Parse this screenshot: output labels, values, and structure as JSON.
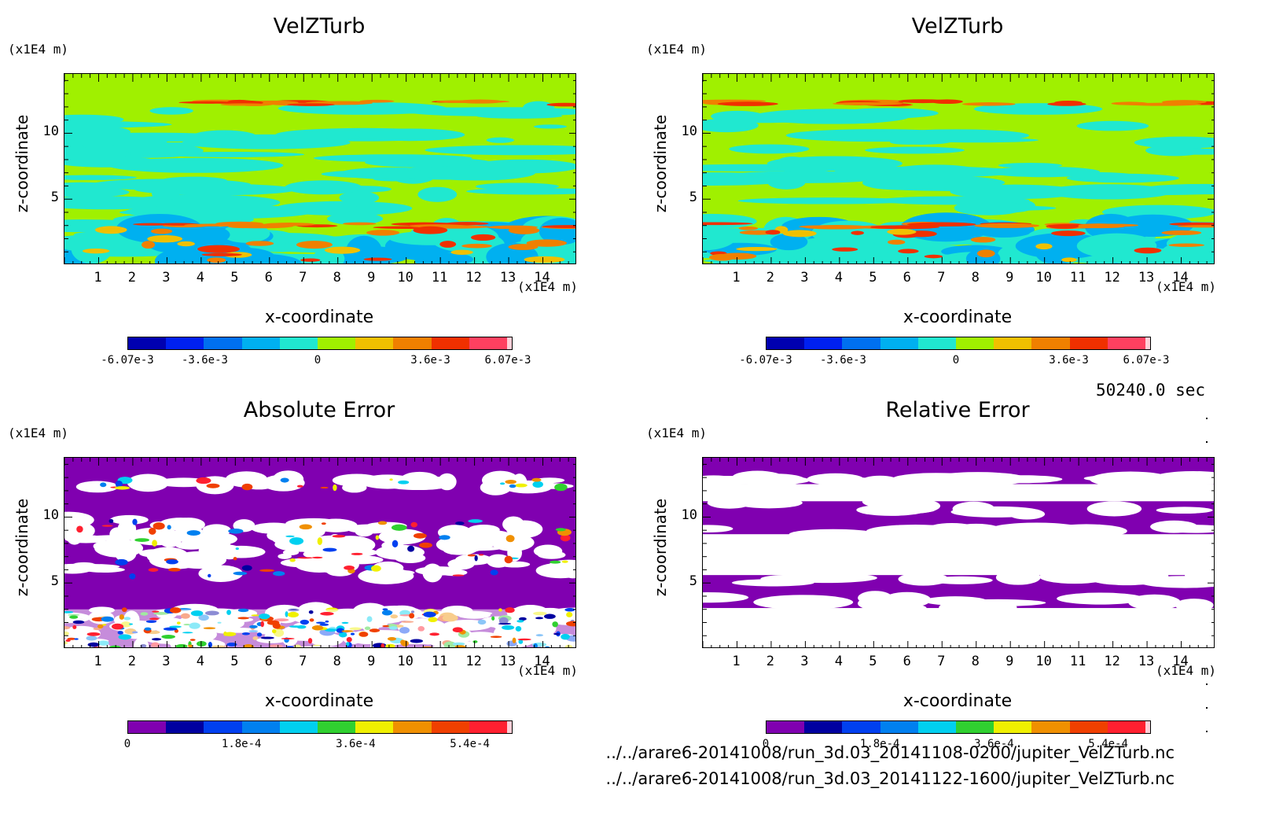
{
  "time_label": "50240.0 sec",
  "files": [
    "../../arare6-20141008/run_3d.03_20141108-0200/jupiter_VelZTurb.nc",
    "../../arare6-20141008/run_3d.03_20141122-1600/jupiter_VelZTurb.nc"
  ],
  "palettes": {
    "velocity": [
      "#0000b0",
      "#0020f0",
      "#0070f0",
      "#00b0f0",
      "#20e8d0",
      "#a0f000",
      "#f0c000",
      "#f08000",
      "#f03000",
      "#ff4060"
    ],
    "error": [
      "#8000b0",
      "#0000a0",
      "#0040f0",
      "#0080f0",
      "#00d0f0",
      "#30d030",
      "#f0f000",
      "#f09000",
      "#f04000",
      "#ff2030"
    ]
  },
  "chart_data": [
    {
      "type": "heatmap",
      "title": "VelZTurb",
      "xlabel": "x-coordinate",
      "ylabel": "z-coordinate",
      "x_unit": "(x1E4 m)",
      "y_unit": "(x1E4 m)",
      "xlim": [
        0,
        15
      ],
      "ylim": [
        0,
        14.5
      ],
      "xticks": [
        "1",
        "2",
        "3",
        "4",
        "5",
        "6",
        "7",
        "8",
        "9",
        "10",
        "11",
        "12",
        "13",
        "14"
      ],
      "yticks": [
        "5",
        "10"
      ],
      "colorbar_ticks": [
        "-6.07e-3",
        "-3.6e-3",
        "0",
        "3.6e-3",
        "6.07e-3"
      ],
      "colorbar_range": [
        -0.00607,
        0.00607
      ]
    },
    {
      "type": "heatmap",
      "title": "VelZTurb",
      "xlabel": "x-coordinate",
      "ylabel": "z-coordinate",
      "x_unit": "(x1E4 m)",
      "y_unit": "(x1E4 m)",
      "xlim": [
        0,
        15
      ],
      "ylim": [
        0,
        14.5
      ],
      "xticks": [
        "1",
        "2",
        "3",
        "4",
        "5",
        "6",
        "7",
        "8",
        "9",
        "10",
        "11",
        "12",
        "13",
        "14"
      ],
      "yticks": [
        "5",
        "10"
      ],
      "colorbar_ticks": [
        "-6.07e-3",
        "-3.6e-3",
        "0",
        "3.6e-3",
        "6.07e-3"
      ],
      "colorbar_range": [
        -0.00607,
        0.00607
      ]
    },
    {
      "type": "heatmap",
      "title": "Absolute Error",
      "xlabel": "x-coordinate",
      "ylabel": "z-coordinate",
      "x_unit": "(x1E4 m)",
      "y_unit": "(x1E4 m)",
      "xlim": [
        0,
        15
      ],
      "ylim": [
        0,
        14.5
      ],
      "xticks": [
        "1",
        "2",
        "3",
        "4",
        "5",
        "6",
        "7",
        "8",
        "9",
        "10",
        "11",
        "12",
        "13",
        "14"
      ],
      "yticks": [
        "5",
        "10"
      ],
      "colorbar_ticks": [
        "0",
        "1.8e-4",
        "3.6e-4",
        "5.4e-4"
      ],
      "colorbar_range": [
        0,
        0.0006
      ]
    },
    {
      "type": "heatmap",
      "title": "Relative Error",
      "xlabel": "x-coordinate",
      "ylabel": "z-coordinate",
      "x_unit": "(x1E4 m)",
      "y_unit": "(x1E4 m)",
      "xlim": [
        0,
        15
      ],
      "ylim": [
        0,
        14.5
      ],
      "xticks": [
        "1",
        "2",
        "3",
        "4",
        "5",
        "6",
        "7",
        "8",
        "9",
        "10",
        "11",
        "12",
        "13",
        "14"
      ],
      "yticks": [
        "5",
        "10"
      ],
      "colorbar_ticks": [
        "0",
        "1.8e-4",
        "3.6e-4",
        "5.4e-4"
      ],
      "colorbar_range": [
        0,
        0.0006
      ]
    }
  ]
}
